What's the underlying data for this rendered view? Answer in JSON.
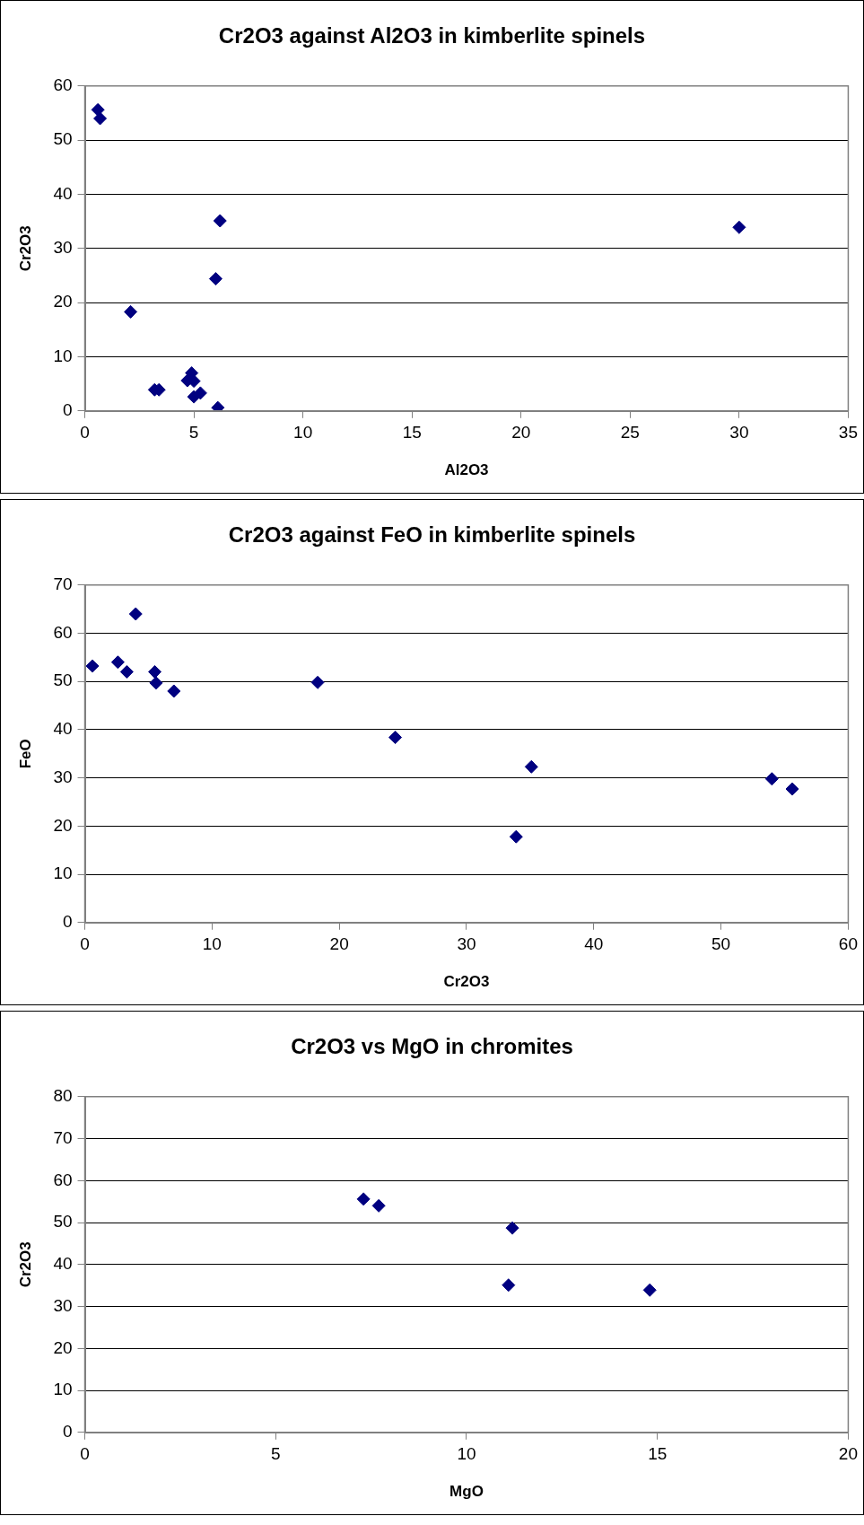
{
  "chart_data": [
    {
      "type": "scatter",
      "title": "Cr2O3 against Al2O3 in kimberlite spinels",
      "xlabel": "Al2O3",
      "ylabel": "Cr2O3",
      "marker": "diamond",
      "grid": "y",
      "xlim": [
        0,
        35
      ],
      "xticks": [
        0,
        5,
        10,
        15,
        20,
        25,
        30,
        35
      ],
      "ylim": [
        0,
        60
      ],
      "yticks": [
        0,
        10,
        20,
        30,
        40,
        50,
        60
      ],
      "series": [
        {
          "color": "#000080",
          "x": [
            0.6,
            0.7,
            2.1,
            3.2,
            3.4,
            4.7,
            4.9,
            5.0,
            5.0,
            5.3,
            6.0,
            6.1,
            6.2,
            30
          ],
          "values": [
            55.6,
            54,
            18.3,
            3.9,
            3.9,
            5.6,
            7,
            5.5,
            2.6,
            3.3,
            24.4,
            0.6,
            35.1,
            33.9
          ]
        }
      ]
    },
    {
      "type": "scatter",
      "title": "Cr2O3 against FeO in kimberlite spinels",
      "xlabel": "Cr2O3",
      "ylabel": "FeO",
      "marker": "diamond",
      "grid": "y",
      "xlim": [
        0,
        60
      ],
      "xticks": [
        0,
        10,
        20,
        30,
        40,
        50,
        60
      ],
      "ylim": [
        0,
        70
      ],
      "yticks": [
        0,
        10,
        20,
        30,
        40,
        50,
        60,
        70
      ],
      "series": [
        {
          "color": "#000080",
          "x": [
            0.6,
            2.6,
            3.3,
            3.9,
            4.0,
            5.5,
            5.6,
            7.0,
            18.3,
            24.4,
            33.9,
            35.1,
            54,
            55.6
          ],
          "values": [
            53.2,
            54,
            52,
            null,
            64,
            52,
            49.7,
            48,
            49.8,
            38.4,
            17.8,
            32.3,
            29.8,
            27.7
          ]
        }
      ]
    },
    {
      "type": "scatter",
      "title": "Cr2O3 vs MgO in chromites",
      "xlabel": "MgO",
      "ylabel": "Cr2O3",
      "marker": "diamond",
      "grid": "y",
      "xlim": [
        0,
        20
      ],
      "xticks": [
        0,
        5,
        10,
        15,
        20
      ],
      "ylim": [
        0,
        80
      ],
      "yticks": [
        0,
        10,
        20,
        30,
        40,
        50,
        60,
        70,
        80
      ],
      "series": [
        {
          "color": "#000080",
          "x": [
            7.3,
            7.7,
            11.2,
            11.1,
            14.8
          ],
          "values": [
            55.6,
            54,
            48.7,
            35.1,
            33.9
          ]
        }
      ]
    }
  ]
}
